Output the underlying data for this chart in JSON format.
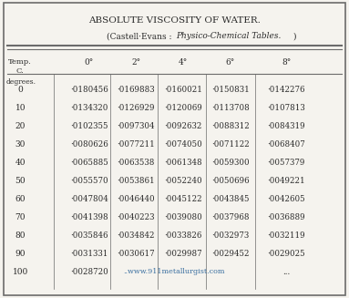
{
  "title": "ABSOLUTE VISCOSITY OF WATER.",
  "subtitle_normal": "(Castell·Evans : ",
  "subtitle_italic": "Physico-Chemical Tables.",
  "subtitle_close": ")",
  "col_headers": [
    "0°",
    "2°",
    "4°",
    "6°",
    "8°"
  ],
  "row_label": "degrees.",
  "rows": [
    [
      "0",
      "·0180456",
      "·0169883",
      "·0160021",
      "·0150831",
      "·0142276"
    ],
    [
      "10",
      "·0134320",
      "·0126929",
      "·0120069",
      "·0113708",
      "·0107813"
    ],
    [
      "20",
      "·0102355",
      "·0097304",
      "·0092632",
      "·0088312",
      "·0084319"
    ],
    [
      "30",
      "·0080626",
      "·0077211",
      "·0074050",
      "·0071122",
      "·0068407"
    ],
    [
      "40",
      "·0065885",
      "·0063538",
      "·0061348",
      "·0059300",
      "·0057379"
    ],
    [
      "50",
      "·0055570",
      "·0053861",
      "·0052240",
      "·0050696",
      "·0049221"
    ],
    [
      "60",
      "·0047804",
      "·0046440",
      "·0045122",
      "·0043845",
      "·0042605"
    ],
    [
      "70",
      "·0041398",
      "·0040223",
      "·0039080",
      "·0037968",
      "·0036889"
    ],
    [
      "80",
      "·0035846",
      "·0034842",
      "·0033826",
      "·0032973",
      "·0032119"
    ],
    [
      "90",
      "·0031331",
      "·0030617",
      "·0029987",
      "·0029452",
      "·0029025"
    ],
    [
      "100",
      "·0028720",
      "..www.911metallurgist.com",
      "",
      "",
      "..."
    ]
  ],
  "watermark_color": "#3a6fa0",
  "bg_color": "#f5f3ee",
  "border_color": "#6b6b6b",
  "text_color": "#2a2a2a"
}
